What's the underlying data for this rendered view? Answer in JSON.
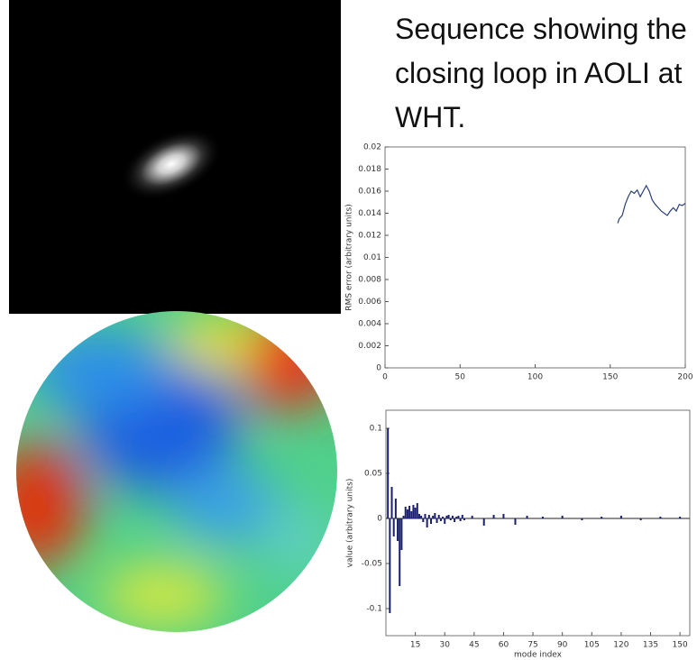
{
  "caption": "Sequence showing the closing loop in AOLI at WHT.",
  "chart_data": [
    {
      "type": "line",
      "ylabel": "RMS error (arbitrary units)",
      "x": [
        155,
        156,
        158,
        160,
        162,
        164,
        166,
        168,
        170,
        172,
        174,
        176,
        178,
        180,
        182,
        184,
        186,
        188,
        190,
        192,
        194,
        196,
        198,
        200
      ],
      "series": [
        {
          "color": "#2a3f7a",
          "values": [
            0.0131,
            0.0135,
            0.0138,
            0.0148,
            0.0155,
            0.016,
            0.0158,
            0.0161,
            0.0155,
            0.016,
            0.0165,
            0.016,
            0.0152,
            0.0148,
            0.0145,
            0.0142,
            0.014,
            0.0138,
            0.0142,
            0.0145,
            0.0142,
            0.0148,
            0.0147,
            0.0149
          ]
        }
      ],
      "xlim": [
        0,
        200
      ],
      "xticks": [
        0,
        50,
        100,
        150,
        200
      ],
      "ylim": [
        0,
        0.02
      ],
      "yticks": [
        0,
        0.002,
        0.004,
        0.006,
        0.008,
        0.01,
        0.012,
        0.014,
        0.016,
        0.018,
        0.02
      ]
    },
    {
      "type": "bar",
      "xlabel": "mode index",
      "ylabel": "value (arbitrary units)",
      "x": [
        1,
        2,
        3,
        4,
        5,
        6,
        7,
        8,
        9,
        10,
        11,
        12,
        13,
        14,
        15,
        16,
        17,
        18,
        19,
        20,
        21,
        22,
        23,
        24,
        25,
        26,
        27,
        28,
        29,
        30,
        31,
        32,
        33,
        34,
        35,
        36,
        37,
        38,
        39,
        40,
        44,
        50,
        55,
        60,
        66,
        72,
        80,
        90,
        100,
        110,
        120,
        130,
        140,
        150
      ],
      "series": [
        {
          "color": "#1a1f6e",
          "values": [
            0.1,
            -0.105,
            0.035,
            -0.02,
            0.022,
            -0.025,
            -0.075,
            -0.035,
            0.003,
            0.013,
            0.01,
            0.014,
            0.008,
            0.015,
            0.012,
            0.017,
            0.005,
            0.003,
            -0.004,
            0.005,
            -0.01,
            0.004,
            -0.006,
            0.003,
            0.006,
            -0.005,
            0.004,
            -0.003,
            0.002,
            -0.006,
            0.003,
            0.004,
            -0.002,
            0.003,
            -0.004,
            0.002,
            0.003,
            -0.003,
            0.004,
            -0.002,
            0.003,
            -0.008,
            0.004,
            0.005,
            -0.007,
            0.003,
            0.002,
            0.003,
            -0.002,
            0.002,
            0.003,
            -0.002,
            0.002,
            0.002
          ]
        }
      ],
      "xlim": [
        0,
        155
      ],
      "xticks": [
        15,
        30,
        45,
        60,
        75,
        90,
        105,
        120,
        135,
        150
      ],
      "ylim": [
        -0.13,
        0.12
      ],
      "yticks": [
        -0.1,
        -0.05,
        0,
        0.05,
        0.1
      ]
    }
  ]
}
